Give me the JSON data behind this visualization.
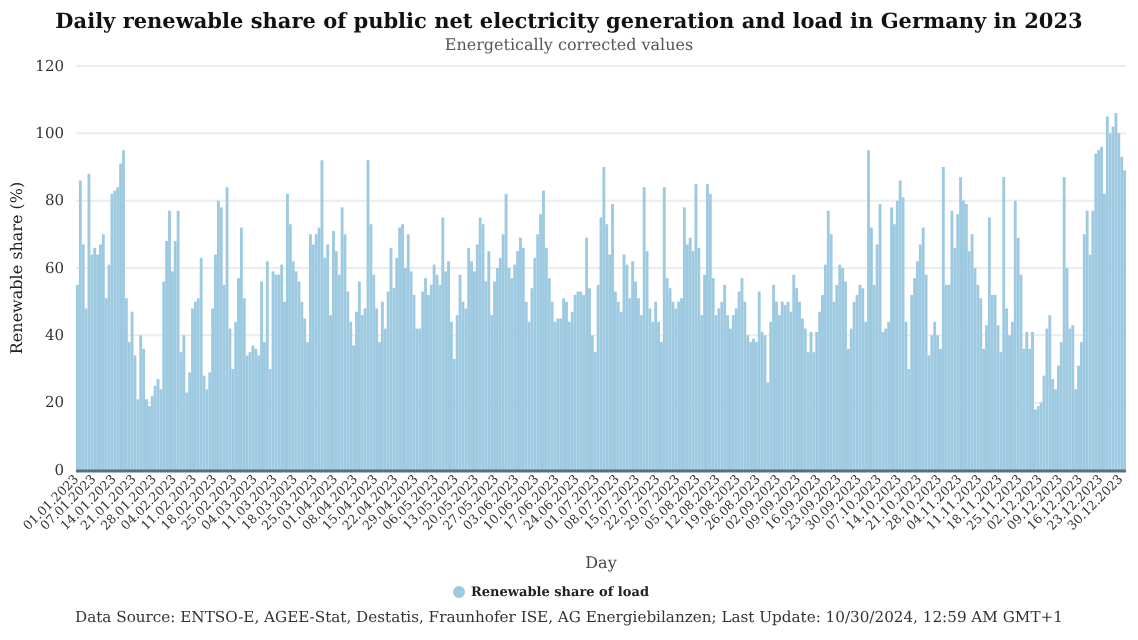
{
  "chart_data": {
    "type": "bar",
    "title": "Daily renewable share of public net electricity generation and load in Germany in 2023",
    "subtitle": "Energetically corrected values",
    "xlabel": "Day",
    "ylabel": "Renewable share (%)",
    "annotations": [
      "Data Source: ENTSO-E, AGEE-Stat, Destatis, Fraunhofer ISE, AG Energiebilanzen; Last Update: 10/30/2024, 12:59 AM GMT+1"
    ],
    "categories": [
      "01.01.2023",
      null,
      null,
      null,
      null,
      null,
      "07.01.2023",
      null,
      null,
      null,
      null,
      null,
      null,
      "14.01.2023",
      null,
      null,
      null,
      null,
      null,
      null,
      "21.01.2023",
      null,
      null,
      null,
      null,
      null,
      null,
      "28.01.2023",
      null,
      null,
      null,
      null,
      null,
      null,
      "04.02.2023",
      null,
      null,
      null,
      null,
      null,
      null,
      "11.02.2023",
      null,
      null,
      null,
      null,
      null,
      null,
      "18.02.2023",
      null,
      null,
      null,
      null,
      null,
      null,
      "25.02.2023",
      null,
      null,
      null,
      null,
      null,
      null,
      "04.03.2023",
      null,
      null,
      null,
      null,
      null,
      null,
      "11.03.2023",
      null,
      null,
      null,
      null,
      null,
      null,
      "18.03.2023",
      null,
      null,
      null,
      null,
      null,
      null,
      "25.03.2023",
      null,
      null,
      null,
      null,
      null,
      null,
      "01.04.2023",
      null,
      null,
      null,
      null,
      null,
      null,
      "08.04.2023",
      null,
      null,
      null,
      null,
      null,
      null,
      "15.04.2023",
      null,
      null,
      null,
      null,
      null,
      null,
      "22.04.2023",
      null,
      null,
      null,
      null,
      null,
      null,
      "29.04.2023",
      null,
      null,
      null,
      null,
      null,
      null,
      "06.05.2023",
      null,
      null,
      null,
      null,
      null,
      null,
      "13.05.2023",
      null,
      null,
      null,
      null,
      null,
      null,
      "20.05.2023",
      null,
      null,
      null,
      null,
      null,
      null,
      "27.05.2023",
      null,
      null,
      null,
      null,
      null,
      null,
      "03.06.2023",
      null,
      null,
      null,
      null,
      null,
      null,
      "10.06.2023",
      null,
      null,
      null,
      null,
      null,
      null,
      "17.06.2023",
      null,
      null,
      null,
      null,
      null,
      null,
      "24.06.2023",
      null,
      null,
      null,
      null,
      null,
      null,
      "01.07.2023",
      null,
      null,
      null,
      null,
      null,
      null,
      "08.07.2023",
      null,
      null,
      null,
      null,
      null,
      null,
      "15.07.2023",
      null,
      null,
      null,
      null,
      null,
      null,
      "22.07.2023",
      null,
      null,
      null,
      null,
      null,
      null,
      "29.07.2023",
      null,
      null,
      null,
      null,
      null,
      null,
      "05.08.2023",
      null,
      null,
      null,
      null,
      null,
      null,
      "12.08.2023",
      null,
      null,
      null,
      null,
      null,
      null,
      "19.08.2023",
      null,
      null,
      null,
      null,
      null,
      null,
      "26.08.2023",
      null,
      null,
      null,
      null,
      null,
      null,
      "02.09.2023",
      null,
      null,
      null,
      null,
      null,
      null,
      "09.09.2023",
      null,
      null,
      null,
      null,
      null,
      null,
      "16.09.2023",
      null,
      null,
      null,
      null,
      null,
      null,
      "23.09.2023",
      null,
      null,
      null,
      null,
      null,
      null,
      "30.09.2023",
      null,
      null,
      null,
      null,
      null,
      null,
      "07.10.2023",
      null,
      null,
      null,
      null,
      null,
      null,
      "14.10.2023",
      null,
      null,
      null,
      null,
      null,
      null,
      "21.10.2023",
      null,
      null,
      null,
      null,
      null,
      null,
      "28.10.2023",
      null,
      null,
      null,
      null,
      null,
      null,
      "04.11.2023",
      null,
      null,
      null,
      null,
      null,
      null,
      "11.11.2023",
      null,
      null,
      null,
      null,
      null,
      null,
      "18.11.2023",
      null,
      null,
      null,
      null,
      null,
      null,
      "25.11.2023",
      null,
      null,
      null,
      null,
      null,
      null,
      "02.12.2023",
      null,
      null,
      null,
      null,
      null,
      null,
      "09.12.2023",
      null,
      null,
      null,
      null,
      null,
      null,
      "16.12.2023",
      null,
      null,
      null,
      null,
      null,
      null,
      "23.12.2023",
      null,
      null,
      null,
      null,
      null,
      null,
      "30.12.2023",
      null
    ],
    "series": [
      {
        "name": "Renewable share of load",
        "color": "#9ecae1",
        "values": [
          55,
          86,
          67,
          48,
          88,
          64,
          66,
          64,
          67,
          70,
          51,
          61,
          82,
          83,
          84,
          91,
          95,
          51,
          38,
          47,
          34,
          21,
          40,
          36,
          21,
          19,
          22,
          25,
          27,
          24,
          56,
          68,
          77,
          59,
          68,
          77,
          35,
          40,
          23,
          29,
          48,
          50,
          51,
          63,
          28,
          24,
          29,
          48,
          64,
          80,
          78,
          55,
          84,
          42,
          30,
          44,
          57,
          72,
          51,
          34,
          35,
          37,
          36,
          34,
          56,
          38,
          62,
          30,
          59,
          58,
          58,
          61,
          50,
          82,
          73,
          62,
          59,
          56,
          50,
          45,
          38,
          70,
          67,
          70,
          72,
          92,
          63,
          67,
          46,
          71,
          65,
          58,
          78,
          70,
          53,
          44,
          37,
          47,
          56,
          46,
          48,
          92,
          73,
          58,
          48,
          38,
          50,
          42,
          53,
          66,
          54,
          63,
          72,
          73,
          60,
          70,
          59,
          52,
          42,
          42,
          53,
          57,
          52,
          55,
          61,
          58,
          55,
          75,
          59,
          62,
          44,
          33,
          46,
          58,
          50,
          48,
          66,
          62,
          59,
          67,
          75,
          73,
          56,
          65,
          46,
          56,
          60,
          63,
          70,
          82,
          60,
          57,
          61,
          65,
          69,
          66,
          50,
          44,
          54,
          63,
          70,
          76,
          83,
          66,
          57,
          50,
          44,
          45,
          45,
          51,
          50,
          44,
          47,
          52,
          53,
          53,
          52,
          69,
          54,
          40,
          35,
          55,
          75,
          90,
          73,
          64,
          79,
          53,
          50,
          47,
          64,
          61,
          51,
          62,
          56,
          51,
          46,
          84,
          65,
          48,
          44,
          50,
          44,
          38,
          84,
          57,
          54,
          50,
          48,
          50,
          51,
          78,
          67,
          69,
          65,
          85,
          66,
          46,
          58,
          85,
          82,
          57,
          46,
          48,
          50,
          55,
          46,
          42,
          46,
          48,
          53,
          57,
          50,
          40,
          38,
          39,
          38,
          53,
          41,
          40,
          26,
          44,
          55,
          50,
          46,
          50,
          49,
          50,
          47,
          58,
          54,
          50,
          45,
          42,
          35,
          41,
          35,
          41,
          47,
          52,
          61,
          77,
          70,
          50,
          55,
          61,
          60,
          56,
          36,
          42,
          50,
          52,
          55,
          54,
          44,
          95,
          72,
          55,
          67,
          79,
          41,
          42,
          44,
          78,
          73,
          80,
          86,
          81,
          44,
          30,
          52,
          57,
          62,
          67,
          72,
          58,
          34,
          40,
          44,
          40,
          36,
          90,
          55,
          55,
          77,
          66,
          76,
          87,
          80,
          79,
          65,
          70,
          60,
          55,
          51,
          36,
          43,
          75,
          52,
          52,
          43,
          35,
          87,
          48,
          40,
          44,
          80,
          69,
          58,
          36,
          41,
          36,
          41,
          18,
          19,
          20,
          28,
          42,
          46,
          27,
          24,
          31,
          38,
          87,
          60,
          42,
          43,
          24,
          31,
          38,
          70,
          77,
          64,
          77,
          94,
          95,
          96,
          82,
          105,
          100,
          102,
          106,
          100,
          93,
          89
        ]
      }
    ],
    "ylim": [
      0,
      120
    ],
    "yticks": [
      0,
      20,
      40,
      60,
      80,
      100,
      120
    ],
    "grid": "y",
    "legend": "bottom"
  }
}
